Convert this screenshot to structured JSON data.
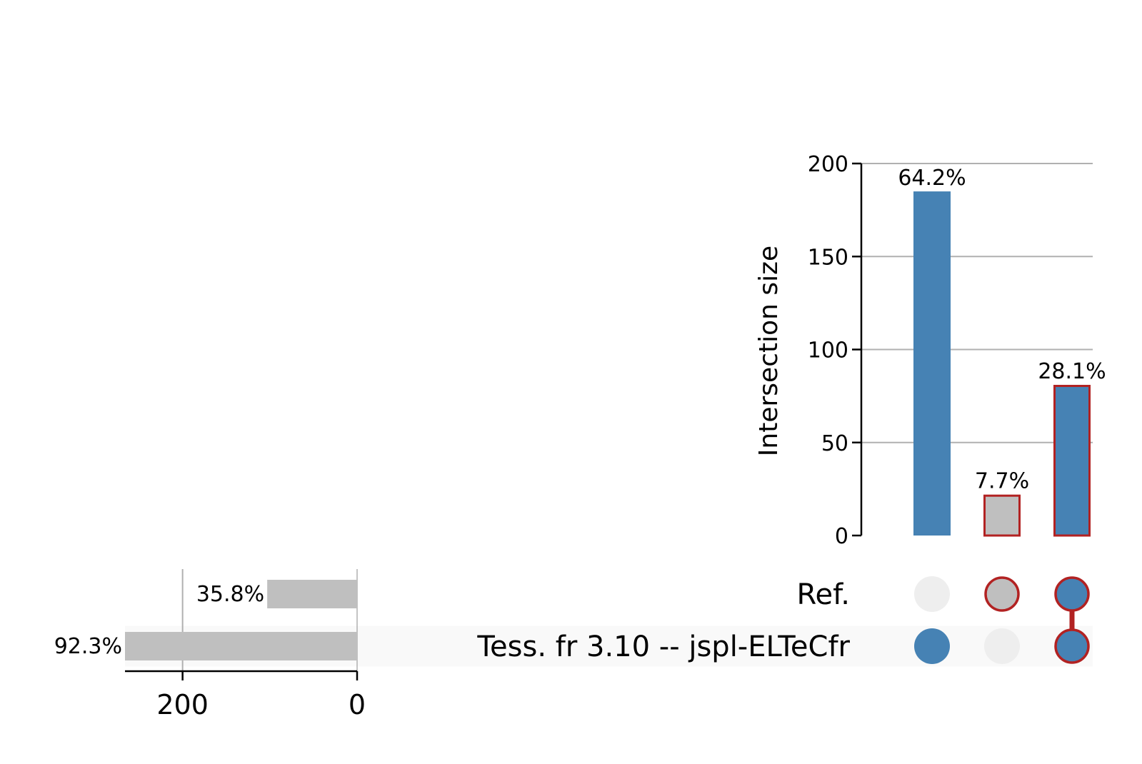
{
  "chart_data": {
    "type": "upset",
    "sets": [
      {
        "name": "Ref.",
        "size": 103,
        "size_label": "35.8%",
        "highlighted": false
      },
      {
        "name": "Tess. fr 3.10 -- jspl-ELTeCfr",
        "size": 266,
        "size_label": "92.3%",
        "highlighted": true
      }
    ],
    "set_size_axis": {
      "ticks": [
        200,
        0
      ],
      "range": [
        266,
        0
      ]
    },
    "intersections": [
      {
        "members": [
          "Tess. fr 3.10 -- jspl-ELTeCfr"
        ],
        "size": 185,
        "label": "64.2%",
        "color": "#4682b4",
        "outlined": false
      },
      {
        "members": [
          "Ref."
        ],
        "size": 22,
        "label": "7.7%",
        "color": "#bfbfbf",
        "outlined": true
      },
      {
        "members": [
          "Ref.",
          "Tess. fr 3.10 -- jspl-ELTeCfr"
        ],
        "size": 81,
        "label": "28.1%",
        "color": "#4682b4",
        "outlined": true
      }
    ],
    "intersection_axis": {
      "label": "Intersection size",
      "ticks": [
        0,
        50,
        100,
        150,
        200
      ],
      "range": [
        0,
        200
      ],
      "grid": true
    },
    "colors": {
      "primary": "#4682b4",
      "neutral": "#bfbfbf",
      "outline": "#b22222",
      "inactive_dot": "#eeeeee",
      "grid": "#b0b0b0",
      "axis": "#000000",
      "highlight_row": "#f9f9f9"
    }
  }
}
